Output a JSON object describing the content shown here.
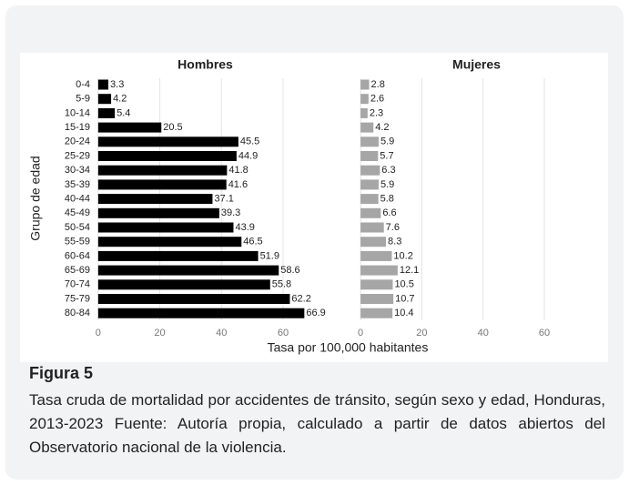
{
  "figure": {
    "ylabel": "Grupo de edad",
    "xlabel": "Tasa por 100,000 habitantes",
    "caption_title": "Figura 5",
    "caption": "Tasa cruda de mortalidad por accidentes de tránsito, según sexo y edad, Honduras, 2013-2023 Fuente: Autoría propia, calculado a partir de datos abiertos del Observatorio nacional de la violencia."
  },
  "chart_data": [
    {
      "type": "bar",
      "orientation": "horizontal",
      "title": "Hombres",
      "color": "#000000",
      "categories": [
        "0-4",
        "5-9",
        "10-14",
        "15-19",
        "20-24",
        "25-29",
        "30-34",
        "35-39",
        "40-44",
        "45-49",
        "50-54",
        "55-59",
        "60-64",
        "65-69",
        "70-74",
        "75-79",
        "80-84"
      ],
      "values": [
        3.3,
        4.2,
        5.4,
        20.5,
        45.5,
        44.9,
        41.8,
        41.6,
        37.1,
        39.3,
        43.9,
        46.5,
        51.9,
        58.6,
        55.8,
        62.2,
        66.9
      ],
      "xlim": [
        -3.5,
        73
      ],
      "xticks": [
        0,
        20,
        40,
        60
      ],
      "grid": true
    },
    {
      "type": "bar",
      "orientation": "horizontal",
      "title": "Mujeres",
      "color": "#a6a6a6",
      "values": [
        2.8,
        2.6,
        2.3,
        4.2,
        5.9,
        5.7,
        6.3,
        5.9,
        5.8,
        6.6,
        7.6,
        8.3,
        10.2,
        12.1,
        10.5,
        10.7,
        10.4
      ],
      "xlim": [
        -3.3,
        79
      ],
      "xticks": [
        0,
        20,
        40,
        60
      ],
      "grid": true
    }
  ]
}
